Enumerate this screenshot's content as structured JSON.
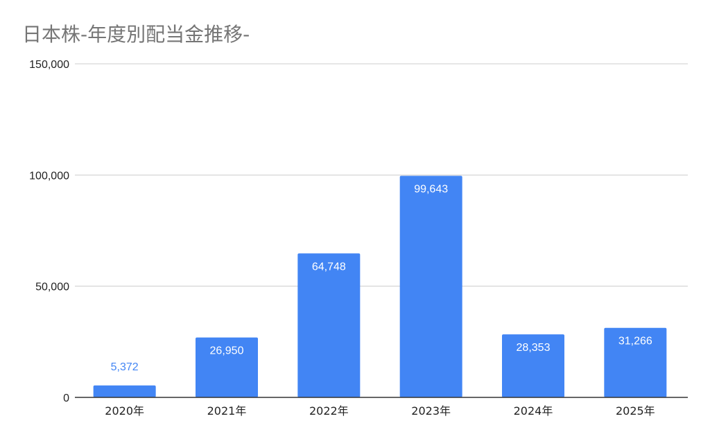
{
  "chart_data": {
    "type": "bar",
    "title": "日本株-年度別配当金推移-",
    "categories": [
      "2020年",
      "2021年",
      "2022年",
      "2023年",
      "2024年",
      "2025年"
    ],
    "values": [
      5372,
      26950,
      64748,
      99643,
      28353,
      31266
    ],
    "data_labels": [
      "5,372",
      "26,950",
      "64,748",
      "99,643",
      "28,353",
      "31,266"
    ],
    "ylim": [
      0,
      150000
    ],
    "yticks": [
      0,
      50000,
      100000,
      150000
    ],
    "ytick_labels": [
      "0",
      "50,000",
      "100,000",
      "150,000"
    ],
    "xlabel": "",
    "ylabel": "",
    "grid": true,
    "legend": "none",
    "colors": {
      "bar": "#4285F4",
      "label_inside": "#FFFFFF",
      "label_outside": "#4285F4",
      "grid": "#CCCCCC",
      "axis": "#333333",
      "title": "#757575"
    }
  }
}
